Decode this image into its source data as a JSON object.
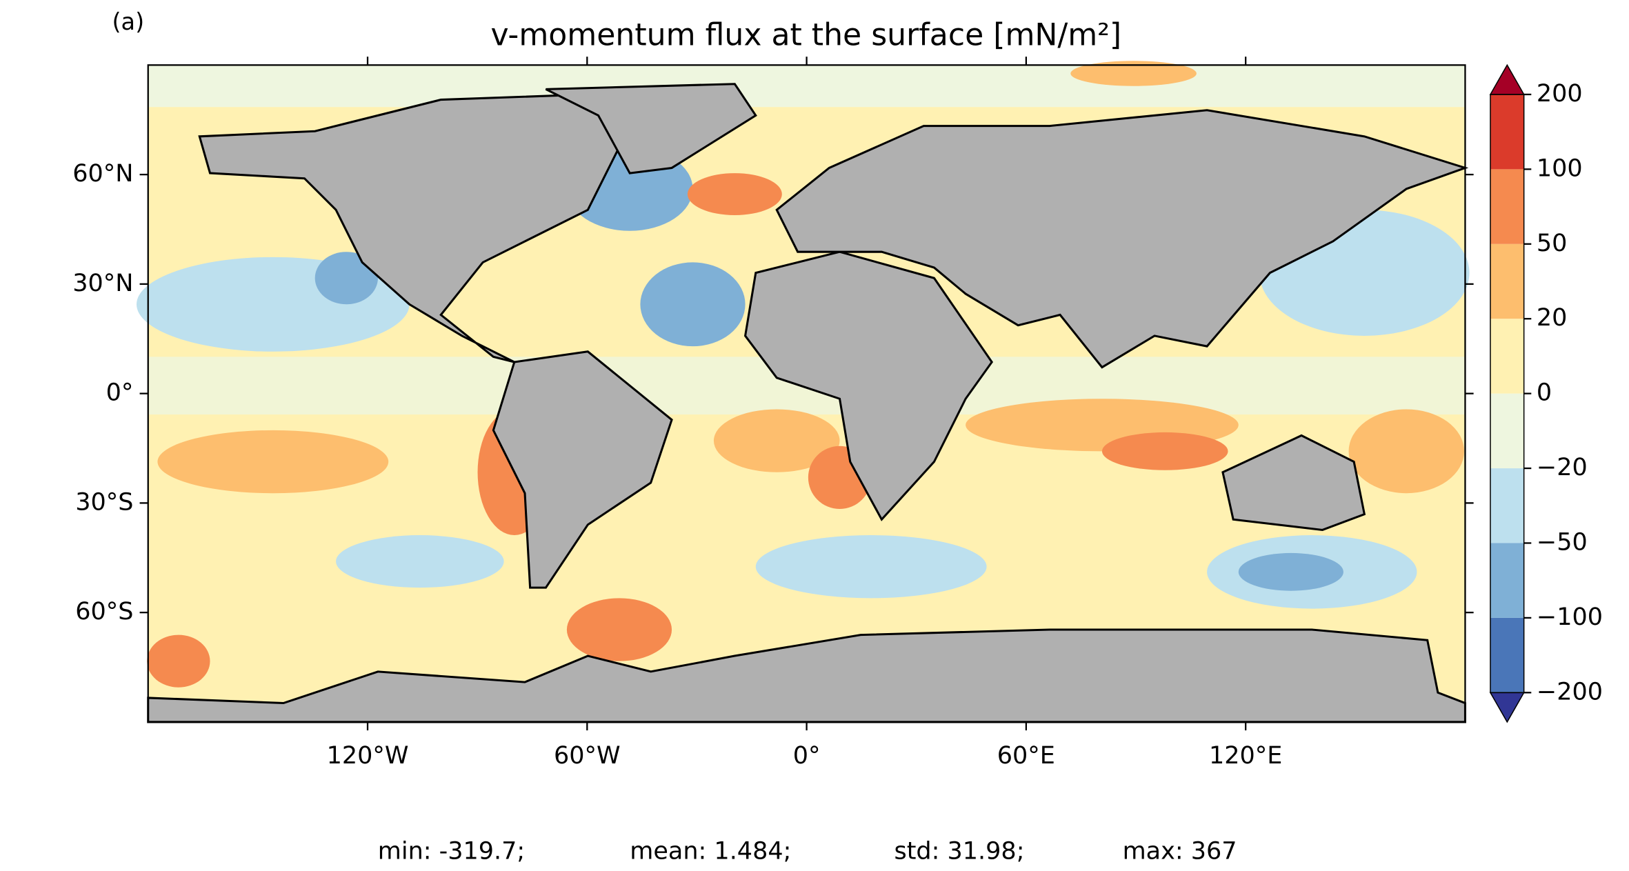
{
  "chart_data": {
    "type": "map",
    "panel_label": "(a)",
    "title": "v-momentum flux at the surface [mN/m²]",
    "xlim": [
      -180,
      180
    ],
    "ylim": [
      -90,
      90
    ],
    "xticks": [
      {
        "value": -120,
        "label": "120°W"
      },
      {
        "value": -60,
        "label": "60°W"
      },
      {
        "value": 0,
        "label": "0°"
      },
      {
        "value": 60,
        "label": "60°E"
      },
      {
        "value": 120,
        "label": "120°E"
      }
    ],
    "yticks": [
      {
        "value": 60,
        "label": "60°N"
      },
      {
        "value": 30,
        "label": "30°N"
      },
      {
        "value": 0,
        "label": "0°"
      },
      {
        "value": -30,
        "label": "30°S"
      },
      {
        "value": -60,
        "label": "60°S"
      }
    ],
    "colorbar": {
      "levels": [
        {
          "value": -200,
          "label": "−200"
        },
        {
          "value": -100,
          "label": "−100"
        },
        {
          "value": -50,
          "label": "−50"
        },
        {
          "value": -20,
          "label": "−20"
        },
        0,
        20,
        50,
        100,
        200
      ],
      "colors": [
        "#4a76b8",
        "#7fb0d6",
        "#bde0ee",
        "#eef6df",
        "#fff1b2",
        "#fdbe6e",
        "#f58a4f",
        "#db3b2b"
      ],
      "under_color": "#313695",
      "over_color": "#a50026"
    },
    "stats": [
      "min: -319.7;",
      "mean: 1.484;",
      "std: 31.98;",
      "max: 367"
    ]
  }
}
